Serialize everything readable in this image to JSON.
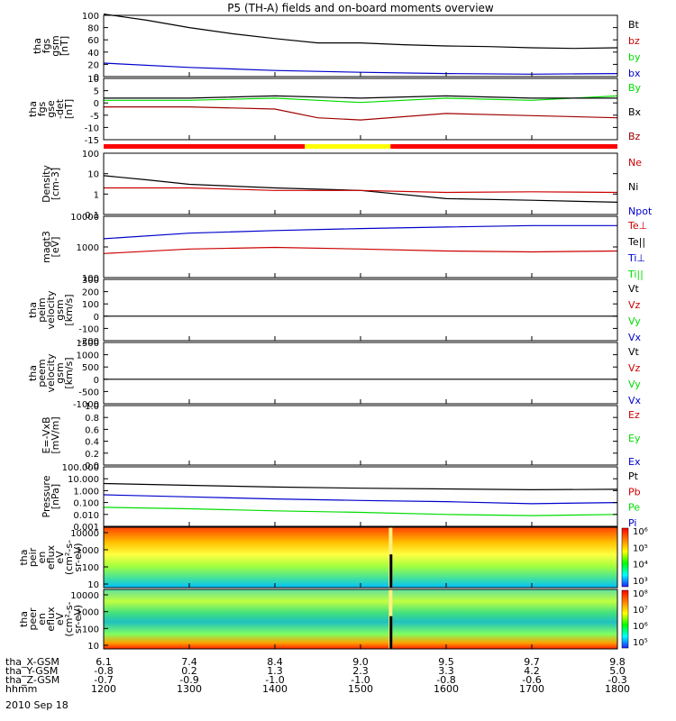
{
  "title": "P5 (TH-A) fields and on-board moments overview",
  "date": "2010 Sep 18",
  "colors": {
    "black": "#000000",
    "red": "#cc0000",
    "green": "#00dd00",
    "blue": "#0000cc",
    "darkred": "#a00000",
    "yellow": "#ffff00"
  },
  "chart_data": [
    {
      "id": "fgs",
      "type": "line",
      "ylabel": [
        "tha",
        "fgs",
        "gsm",
        "[nT]"
      ],
      "ylim": [
        0,
        100
      ],
      "ticks": [
        0,
        20,
        40,
        60,
        80,
        100
      ],
      "legend": [
        "Bt",
        "bz",
        "by",
        "bx"
      ],
      "legend_colors": [
        "black",
        "red",
        "green",
        "blue"
      ],
      "series": [
        {
          "name": "Bt",
          "x": [
            1200,
            1250,
            1300,
            1350,
            1400,
            1450,
            1500,
            1550,
            1600,
            1650,
            1700,
            1750,
            1800
          ],
          "y": [
            102,
            92,
            80,
            70,
            62,
            55,
            55,
            52,
            50,
            49,
            47,
            46,
            47
          ]
        },
        {
          "name": "bx",
          "x": [
            1200,
            1300,
            1400,
            1500,
            1600,
            1700,
            1800
          ],
          "y": [
            22,
            15,
            10,
            7,
            5,
            4,
            5
          ]
        }
      ]
    },
    {
      "id": "fgsdet",
      "type": "line",
      "ylabel": [
        "tha",
        "fgs",
        "gse",
        "-det",
        "[nT]"
      ],
      "ylim": [
        -18,
        10
      ],
      "ticks": [
        -15,
        -10,
        -5,
        0,
        5,
        10
      ],
      "legend": [
        "By",
        "Bx",
        "Bz"
      ],
      "legend_colors": [
        "green",
        "black",
        "darkred"
      ],
      "series": [
        {
          "name": "By",
          "x": [
            1200,
            1300,
            1400,
            1500,
            1600,
            1700,
            1800
          ],
          "y": [
            0,
            0,
            1,
            -1,
            1,
            0,
            2
          ]
        },
        {
          "name": "Bx",
          "x": [
            1200,
            1300,
            1400,
            1500,
            1600,
            1700,
            1800
          ],
          "y": [
            1,
            1,
            2,
            1,
            2,
            1,
            1
          ]
        },
        {
          "name": "Bz",
          "x": [
            1200,
            1300,
            1400,
            1450,
            1500,
            1600,
            1700,
            1800
          ],
          "y": [
            -3,
            -3,
            -4,
            -8,
            -9,
            -6,
            -7,
            -8
          ]
        }
      ]
    },
    {
      "id": "density",
      "type": "line",
      "ylabel": [
        "Density",
        "[cm-3]"
      ],
      "scale": "log",
      "ylim": [
        0.1,
        100
      ],
      "ticks": [
        "0.1",
        "1",
        "10",
        "100"
      ],
      "legend": [
        "Ne",
        "Ni",
        "Npot"
      ],
      "legend_colors": [
        "red",
        "black",
        "blue"
      ],
      "series": [
        {
          "name": "Ni",
          "x": [
            1200,
            1250,
            1300,
            1400,
            1500,
            1600,
            1700,
            1800
          ],
          "y": [
            8,
            5,
            3,
            2,
            1.5,
            0.6,
            0.5,
            0.4
          ]
        },
        {
          "name": "Ne",
          "x": [
            1200,
            1300,
            1400,
            1500,
            1600,
            1700,
            1800
          ],
          "y": [
            2,
            2,
            1.5,
            1.5,
            1.2,
            1.3,
            1.2
          ]
        }
      ]
    },
    {
      "id": "temp",
      "type": "line",
      "ylabel": [
        "magt3",
        "[eV]"
      ],
      "scale": "log",
      "ylim": [
        10,
        10000
      ],
      "ticks": [
        "100",
        "1000",
        "10000"
      ],
      "legend": [
        "Te⊥",
        "Te||",
        "Ti⊥",
        "Ti||"
      ],
      "legend_colors": [
        "red",
        "black",
        "blue",
        "green"
      ],
      "series": [
        {
          "name": "Ti⊥",
          "x": [
            1200,
            1300,
            1400,
            1500,
            1600,
            1700,
            1800
          ],
          "y": [
            800,
            1500,
            2000,
            2500,
            3000,
            3500,
            3500
          ]
        },
        {
          "name": "Te⊥",
          "x": [
            1200,
            1300,
            1400,
            1500,
            1600,
            1700,
            1800
          ],
          "y": [
            150,
            250,
            300,
            250,
            200,
            180,
            200
          ]
        }
      ]
    },
    {
      "id": "peim",
      "type": "line",
      "ylabel": [
        "tha",
        "peim",
        "velocity",
        "gsm",
        "[km/s]"
      ],
      "ylim": [
        -200,
        300
      ],
      "ticks": [
        -200,
        -100,
        0,
        100,
        200,
        300
      ],
      "legend": [
        "Vt",
        "Vz",
        "Vy",
        "Vx"
      ],
      "legend_colors": [
        "black",
        "red",
        "green",
        "blue"
      ],
      "series": [
        {
          "name": "Vt",
          "x": [
            1200,
            1800
          ],
          "y": [
            0,
            0
          ]
        }
      ]
    },
    {
      "id": "peem",
      "type": "line",
      "ylabel": [
        "tha",
        "peem",
        "velocity",
        "gsm",
        "[km/s]"
      ],
      "ylim": [
        -1000,
        1500
      ],
      "ticks": [
        -1000,
        -500,
        0,
        500,
        1000,
        1500
      ],
      "legend": [
        "Vt",
        "Vz",
        "Vy",
        "Vx"
      ],
      "legend_colors": [
        "black",
        "red",
        "green",
        "blue"
      ],
      "series": [
        {
          "name": "Vt",
          "x": [
            1200,
            1800
          ],
          "y": [
            0,
            0
          ]
        }
      ]
    },
    {
      "id": "evxb",
      "type": "line",
      "ylabel": [
        "E=-VxB",
        "[mV/m]"
      ],
      "ylim": [
        0,
        1
      ],
      "ticks": [
        "0.0",
        "0.2",
        "0.4",
        "0.6",
        "0.8",
        "1.0"
      ],
      "legend": [
        "Ez",
        "Ey",
        "Ex"
      ],
      "legend_colors": [
        "red",
        "green",
        "blue"
      ],
      "series": []
    },
    {
      "id": "pressure",
      "type": "line",
      "ylabel": [
        "Pressure",
        "[nPa]"
      ],
      "scale": "log",
      "ylim": [
        0.001,
        100
      ],
      "ticks": [
        "0.001",
        "0.010",
        "0.100",
        "1.000",
        "10.000",
        "100.000"
      ],
      "legend": [
        "Pt",
        "Pb",
        "Pe",
        "Pi"
      ],
      "legend_colors": [
        "black",
        "red",
        "green",
        "blue"
      ],
      "series": [
        {
          "name": "Pt",
          "x": [
            1200,
            1300,
            1400,
            1500,
            1600,
            1700,
            1800
          ],
          "y": [
            4,
            2.8,
            2,
            1.6,
            1.4,
            1.2,
            1.3
          ]
        },
        {
          "name": "Pi",
          "x": [
            1200,
            1300,
            1400,
            1500,
            1600,
            1700,
            1800
          ],
          "y": [
            0.45,
            0.3,
            0.2,
            0.15,
            0.12,
            0.08,
            0.1
          ]
        },
        {
          "name": "Pe",
          "x": [
            1200,
            1300,
            1400,
            1500,
            1600,
            1700,
            1800
          ],
          "y": [
            0.04,
            0.03,
            0.02,
            0.015,
            0.01,
            0.008,
            0.01
          ]
        }
      ]
    },
    {
      "id": "peir",
      "type": "heatmap",
      "ylabel": [
        "tha",
        "peir",
        "en",
        "eflux",
        "eV",
        "(cm²-s-",
        "sr-eV)"
      ],
      "ticks": [
        "10",
        "100",
        "1000",
        "10000"
      ],
      "colorbar": [
        "10³",
        "10⁴",
        "10⁵",
        "10⁶"
      ]
    },
    {
      "id": "peer",
      "type": "heatmap",
      "ylabel": [
        "tha",
        "peer",
        "en",
        "eflux",
        "eV",
        "(cm²-s-",
        "sr-eV)"
      ],
      "ticks": [
        "10",
        "100",
        "1000",
        "10000"
      ],
      "colorbar": [
        "10⁵",
        "10⁶",
        "10⁷",
        "10⁸"
      ]
    }
  ],
  "xaxis": {
    "labels": [
      "tha_X-GSM",
      "tha_Y-GSM",
      "tha_Z-GSM",
      "hhmm"
    ],
    "rows": [
      [
        "6.1",
        "7.4",
        "8.4",
        "9.0",
        "9.5",
        "9.7",
        "9.8"
      ],
      [
        "-0.8",
        "0.2",
        "1.3",
        "2.3",
        "3.3",
        "4.2",
        "5.0"
      ],
      [
        "-0.7",
        "-0.9",
        "-1.0",
        "-1.0",
        "-0.8",
        "-0.6",
        "-0.3"
      ],
      [
        "1200",
        "1300",
        "1400",
        "1500",
        "1600",
        "1700",
        "1800"
      ]
    ]
  }
}
